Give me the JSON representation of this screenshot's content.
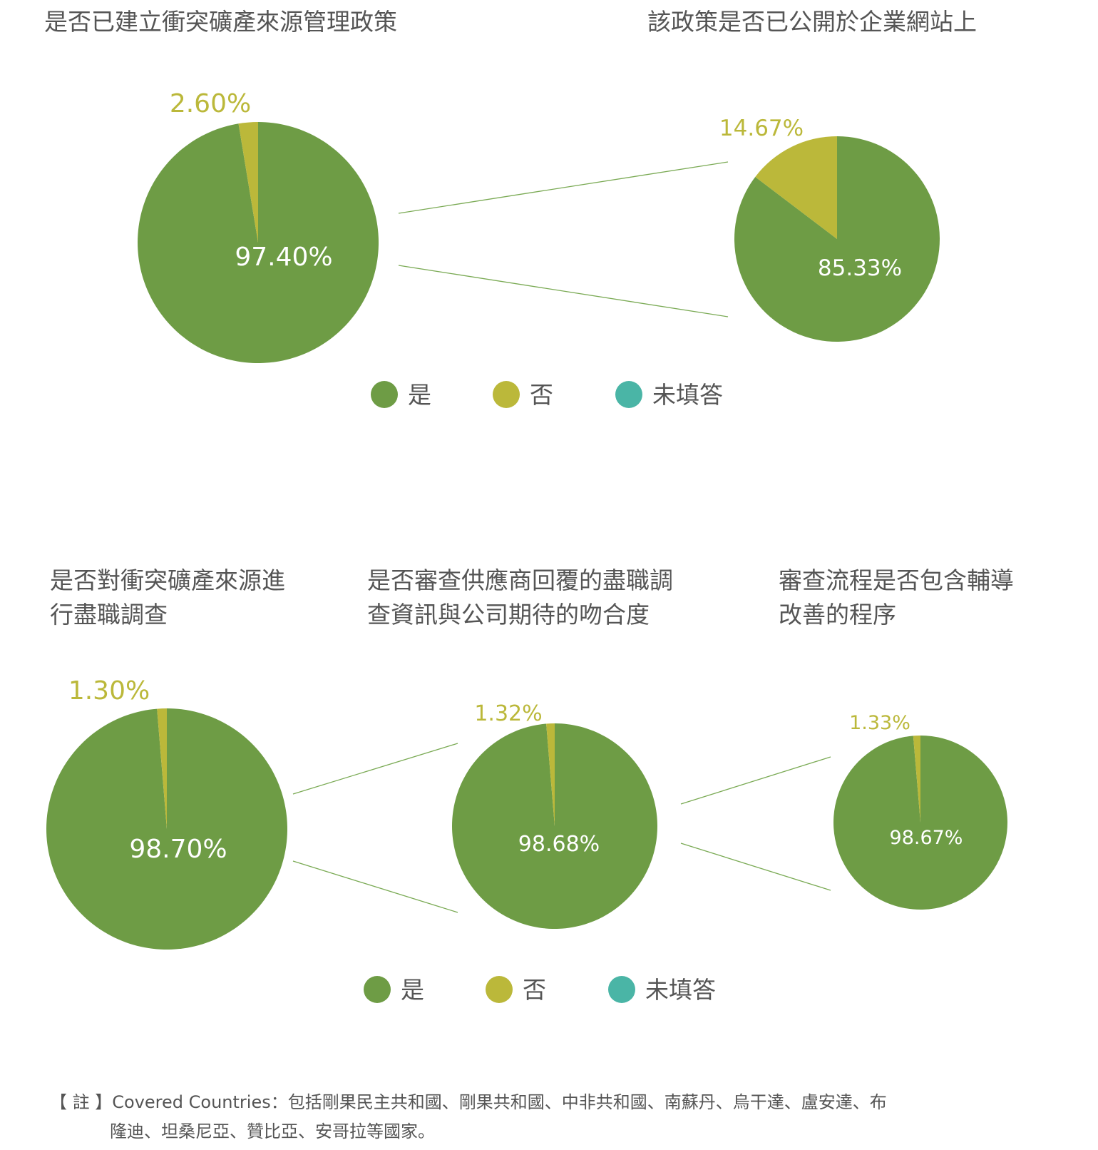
{
  "colors": {
    "yes": "#6e9c45",
    "no": "#bbb83a",
    "blank": "#4ab5a6",
    "text": "#555555",
    "label_in": "#ffffff",
    "connector": "#7aaa54"
  },
  "legend_items": [
    "是",
    "否",
    "未填答"
  ],
  "note": {
    "prefix": "【 註 】",
    "label": "Covered Countries：",
    "line1": "包括剛果民主共和國、剛果共和國、中非共和國、南蘇丹、烏干達、盧安達、布",
    "line2": "隆迪、坦桑尼亞、贊比亞、安哥拉等國家。"
  },
  "chart_data": [
    {
      "type": "pie",
      "title_lines": [
        "是否已建立衝突礦產來源管理政策"
      ],
      "categories": [
        "是",
        "否",
        "未填答"
      ],
      "values": [
        97.4,
        2.6,
        0
      ],
      "labels": [
        "97.40%",
        "2.60%"
      ]
    },
    {
      "type": "pie",
      "title_lines": [
        "該政策是否已公開於企業網站上"
      ],
      "categories": [
        "是",
        "否",
        "未填答"
      ],
      "values": [
        85.33,
        14.67,
        0
      ],
      "labels": [
        "85.33%",
        "14.67%"
      ]
    },
    {
      "type": "pie",
      "title_lines": [
        "是否對衝突礦產來源進",
        "行盡職調查"
      ],
      "categories": [
        "是",
        "否",
        "未填答"
      ],
      "values": [
        98.7,
        1.3,
        0
      ],
      "labels": [
        "98.70%",
        "1.30%"
      ]
    },
    {
      "type": "pie",
      "title_lines": [
        "是否審查供應商回覆的盡職調",
        "查資訊與公司期待的吻合度"
      ],
      "categories": [
        "是",
        "否",
        "未填答"
      ],
      "values": [
        98.68,
        1.32,
        0
      ],
      "labels": [
        "98.68%",
        "1.32%"
      ]
    },
    {
      "type": "pie",
      "title_lines": [
        "審查流程是否包含輔導",
        "改善的程序"
      ],
      "categories": [
        "是",
        "否",
        "未填答"
      ],
      "values": [
        98.67,
        1.33,
        0
      ],
      "labels": [
        "98.67%",
        "1.33%"
      ]
    }
  ]
}
